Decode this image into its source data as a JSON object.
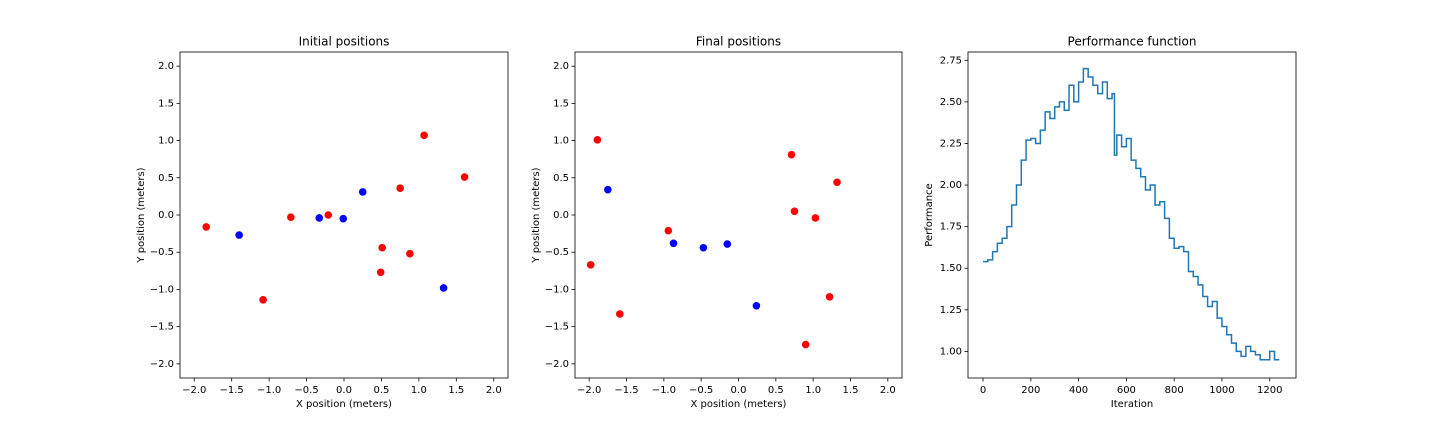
{
  "chart_data": [
    {
      "type": "scatter",
      "title": "Initial positions",
      "x_label": "X position (meters)",
      "y_label": "Y position (meters)",
      "series": [
        {
          "color": "#ff0000",
          "x": [
            -1.84,
            -1.08,
            -0.71,
            -0.21,
            0.51,
            0.49,
            0.75,
            0.88,
            1.07,
            1.61
          ],
          "y": [
            -0.16,
            -1.14,
            -0.03,
            0.0,
            -0.44,
            -0.77,
            0.36,
            -0.52,
            1.07,
            0.51
          ]
        },
        {
          "color": "#0000ff",
          "x": [
            -1.4,
            -0.33,
            -0.01,
            0.25,
            1.33
          ],
          "y": [
            -0.27,
            -0.04,
            -0.05,
            0.31,
            -0.98
          ]
        }
      ],
      "xlim": [
        -2.19,
        2.19
      ],
      "ylim": [
        -2.19,
        2.19
      ],
      "xticks": [
        {
          "value": -2,
          "label": "−2.0"
        },
        {
          "value": -1.5,
          "label": "−1.5"
        },
        {
          "value": -1,
          "label": "−1.0"
        },
        {
          "value": -0.5,
          "label": "−0.5"
        },
        {
          "value": 0,
          "label": "0.0"
        },
        {
          "value": 0.5,
          "label": "0.5"
        },
        {
          "value": 1,
          "label": "1.0"
        },
        {
          "value": 1.5,
          "label": "1.5"
        },
        {
          "value": 2,
          "label": "2.0"
        }
      ],
      "yticks": [
        {
          "value": -2,
          "label": "−2.0"
        },
        {
          "value": -1.5,
          "label": "−1.5"
        },
        {
          "value": -1,
          "label": "−1.0"
        },
        {
          "value": -0.5,
          "label": "−0.5"
        },
        {
          "value": 0,
          "label": "0.0"
        },
        {
          "value": 0.5,
          "label": "0.5"
        },
        {
          "value": 1,
          "label": "1.0"
        },
        {
          "value": 1.5,
          "label": "1.5"
        },
        {
          "value": 2,
          "label": "2.0"
        }
      ]
    },
    {
      "type": "scatter",
      "title": "Final positions",
      "x_label": "X position (meters)",
      "y_label": "Y position (meters)",
      "series": [
        {
          "color": "#ff0000",
          "x": [
            -1.98,
            -1.89,
            -1.59,
            -0.94,
            0.71,
            0.75,
            1.03,
            1.22,
            1.32,
            0.9
          ],
          "y": [
            -0.67,
            1.01,
            -1.33,
            -0.21,
            0.81,
            0.05,
            -0.04,
            -1.1,
            0.44,
            -1.74
          ]
        },
        {
          "color": "#0000ff",
          "x": [
            -1.75,
            -0.87,
            -0.47,
            -0.15,
            0.24
          ],
          "y": [
            0.34,
            -0.38,
            -0.44,
            -0.39,
            -1.22
          ]
        }
      ],
      "xlim": [
        -2.19,
        2.19
      ],
      "ylim": [
        -2.19,
        2.19
      ],
      "xticks": [
        {
          "value": -2,
          "label": "−2.0"
        },
        {
          "value": -1.5,
          "label": "−1.5"
        },
        {
          "value": -1,
          "label": "−1.0"
        },
        {
          "value": -0.5,
          "label": "−0.5"
        },
        {
          "value": 0,
          "label": "0.0"
        },
        {
          "value": 0.5,
          "label": "0.5"
        },
        {
          "value": 1,
          "label": "1.0"
        },
        {
          "value": 1.5,
          "label": "1.5"
        },
        {
          "value": 2,
          "label": "2.0"
        }
      ],
      "yticks": [
        {
          "value": -2,
          "label": "−2.0"
        },
        {
          "value": -1.5,
          "label": "−1.5"
        },
        {
          "value": -1,
          "label": "−1.0"
        },
        {
          "value": -0.5,
          "label": "−0.5"
        },
        {
          "value": 0,
          "label": "0.0"
        },
        {
          "value": 0.5,
          "label": "0.5"
        },
        {
          "value": 1,
          "label": "1.0"
        },
        {
          "value": 1.5,
          "label": "1.5"
        },
        {
          "value": 2,
          "label": "2.0"
        }
      ]
    },
    {
      "type": "line",
      "title": "Performance function",
      "x_label": "Iteration",
      "y_label": "Performance",
      "drawstyle": "steps-post",
      "series": [
        {
          "color": "#1f77b4",
          "x": [
            0,
            20,
            40,
            60,
            80,
            100,
            120,
            140,
            160,
            180,
            200,
            220,
            240,
            260,
            280,
            300,
            320,
            340,
            360,
            380,
            400,
            420,
            440,
            460,
            480,
            500,
            520,
            540,
            550,
            560,
            580,
            600,
            620,
            640,
            660,
            680,
            700,
            720,
            740,
            760,
            780,
            800,
            820,
            840,
            860,
            880,
            900,
            920,
            940,
            960,
            980,
            1000,
            1020,
            1040,
            1060,
            1080,
            1100,
            1120,
            1140,
            1160,
            1180,
            1200,
            1220,
            1240
          ],
          "values": [
            1.54,
            1.55,
            1.6,
            1.65,
            1.68,
            1.75,
            1.88,
            2.0,
            2.15,
            2.27,
            2.28,
            2.25,
            2.33,
            2.44,
            2.4,
            2.47,
            2.5,
            2.45,
            2.6,
            2.5,
            2.62,
            2.7,
            2.65,
            2.6,
            2.55,
            2.62,
            2.52,
            2.55,
            2.18,
            2.3,
            2.23,
            2.28,
            2.15,
            2.1,
            2.05,
            1.97,
            2.0,
            1.88,
            1.9,
            1.8,
            1.68,
            1.62,
            1.63,
            1.6,
            1.48,
            1.45,
            1.4,
            1.33,
            1.27,
            1.3,
            1.2,
            1.15,
            1.1,
            1.05,
            1.0,
            0.97,
            1.03,
            1.0,
            0.98,
            0.95,
            0.95,
            1.0,
            0.95,
            0.95
          ]
        }
      ],
      "xlim": [
        -63,
        1310
      ],
      "ylim": [
        0.84,
        2.8
      ],
      "xticks": [
        0,
        200,
        400,
        600,
        800,
        1000,
        1200
      ],
      "yticks": [
        {
          "value": 1,
          "label": "1.00"
        },
        {
          "value": 1.25,
          "label": "1.25"
        },
        {
          "value": 1.5,
          "label": "1.50"
        },
        {
          "value": 1.75,
          "label": "1.75"
        },
        {
          "value": 2,
          "label": "2.00"
        },
        {
          "value": 2.25,
          "label": "2.25"
        },
        {
          "value": 2.5,
          "label": "2.50"
        },
        {
          "value": 2.75,
          "label": "2.75"
        }
      ]
    }
  ]
}
